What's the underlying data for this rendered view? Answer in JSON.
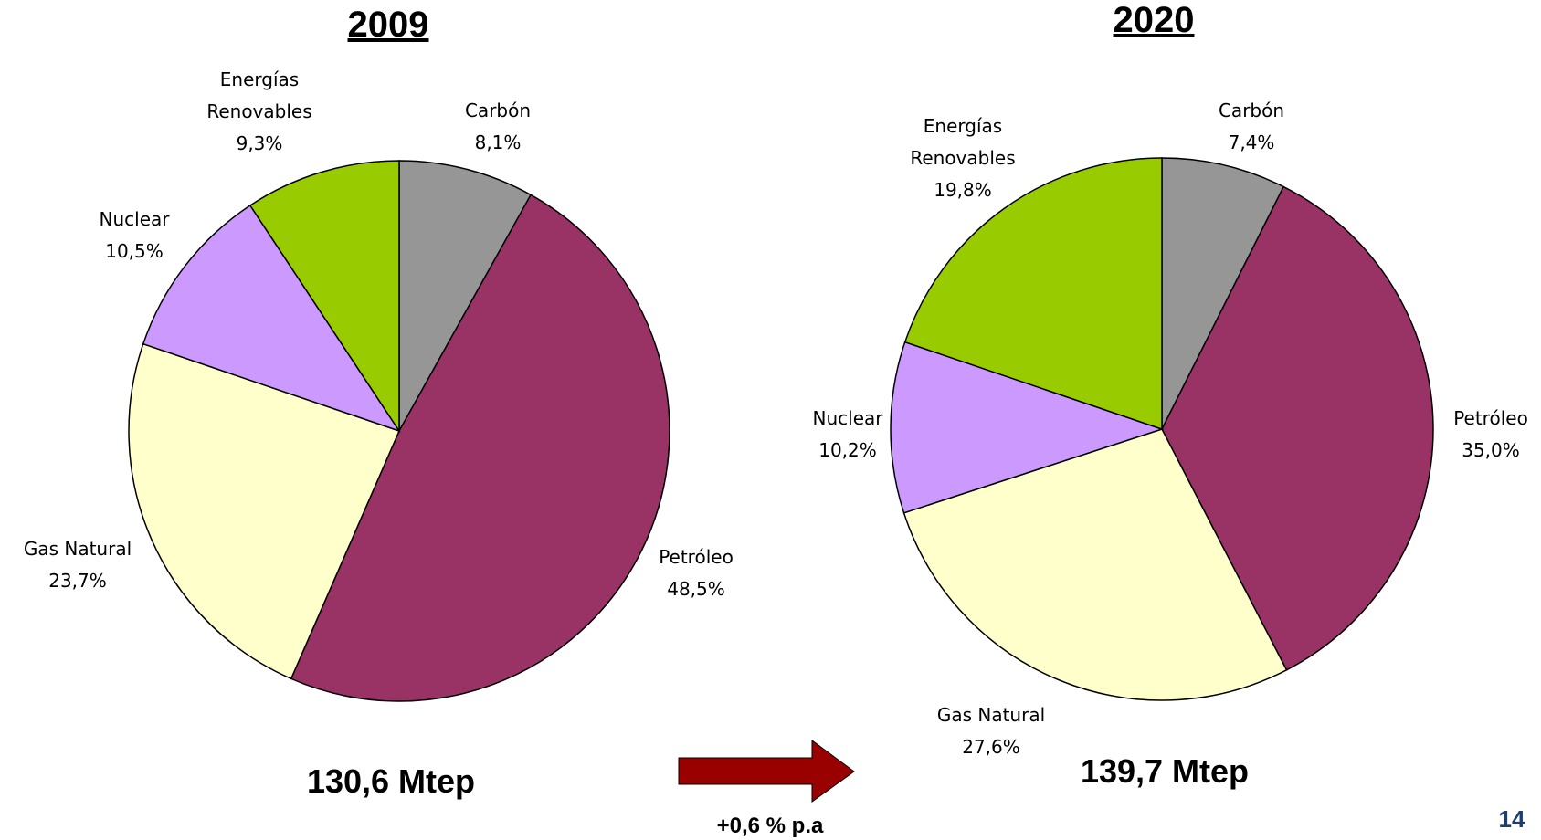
{
  "chart_data": [
    {
      "type": "pie",
      "title": "2009",
      "total_label": "130,6 Mtep",
      "slices": [
        {
          "name": "Carbón",
          "value": 8.1,
          "value_label": "8,1%",
          "color": "#969696"
        },
        {
          "name": "Petróleo",
          "value": 48.5,
          "value_label": "48,5%",
          "color": "#993366"
        },
        {
          "name": "Gas Natural",
          "value": 23.7,
          "value_label": "23,7%",
          "color": "#FFFFCC"
        },
        {
          "name": "Nuclear",
          "value": 10.5,
          "value_label": "10,5%",
          "color": "#CC99FF"
        },
        {
          "name": "Energías Renovables",
          "value": 9.3,
          "value_label": "9,3%",
          "color": "#99CC00"
        }
      ]
    },
    {
      "type": "pie",
      "title": "2020",
      "total_label": "139,7 Mtep",
      "slices": [
        {
          "name": "Carbón",
          "value": 7.4,
          "value_label": "7,4%",
          "color": "#969696"
        },
        {
          "name": "Petróleo",
          "value": 35.0,
          "value_label": "35,0%",
          "color": "#993366"
        },
        {
          "name": "Gas Natural",
          "value": 27.6,
          "value_label": "27,6%",
          "color": "#FFFFCC"
        },
        {
          "name": "Nuclear",
          "value": 10.2,
          "value_label": "10,2%",
          "color": "#CC99FF"
        },
        {
          "name": "Energías Renovables",
          "value": 19.8,
          "value_label": "19,8%",
          "color": "#99CC00"
        }
      ]
    }
  ],
  "growth": {
    "label": "+0,6 % p.a",
    "arrow_color": "#990000"
  },
  "page_number": "14"
}
